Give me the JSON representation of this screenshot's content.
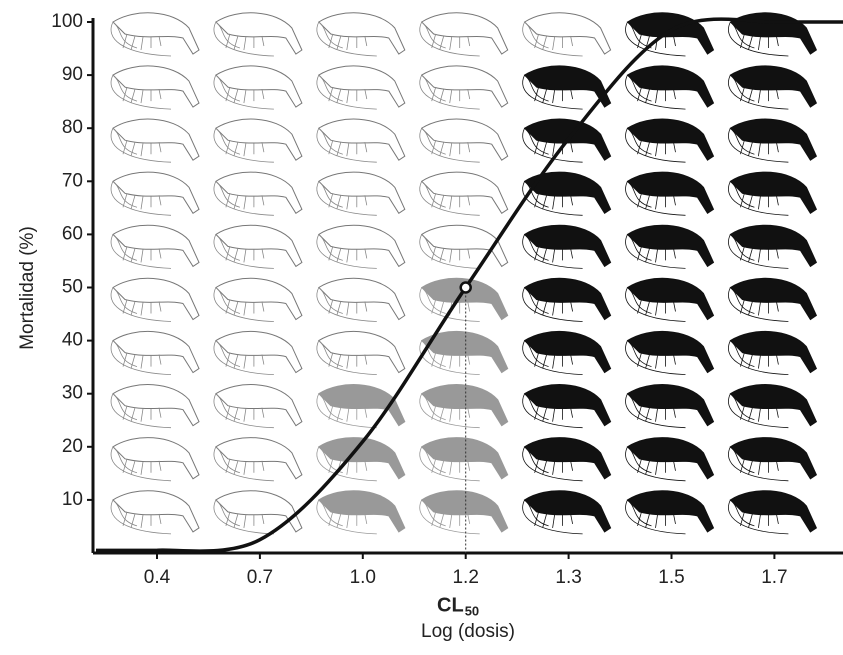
{
  "chart_data": {
    "type": "line",
    "x_label": "Log (dosis)",
    "y_label": "Mortalidad (%)",
    "categories": [
      "0.4",
      "0.7",
      "1.0",
      "1.2",
      "1.3",
      "1.5",
      "1.7"
    ],
    "values": [
      0.5,
      2.5,
      21,
      50,
      78,
      98.5,
      100
    ],
    "color": "#111111",
    "ylim": [
      0,
      100
    ],
    "yticks": [
      10,
      20,
      30,
      40,
      50,
      60,
      70,
      80,
      90,
      100
    ],
    "icons_per_column": 10,
    "dead_counts": [
      0,
      0,
      3,
      5,
      9,
      10,
      10
    ],
    "dead_colors": [
      "#999999",
      "#999999",
      "#999999",
      "#999999",
      "#111111",
      "#111111",
      "#111111"
    ],
    "annotation": {
      "text": "CL",
      "subscript": "50"
    }
  }
}
